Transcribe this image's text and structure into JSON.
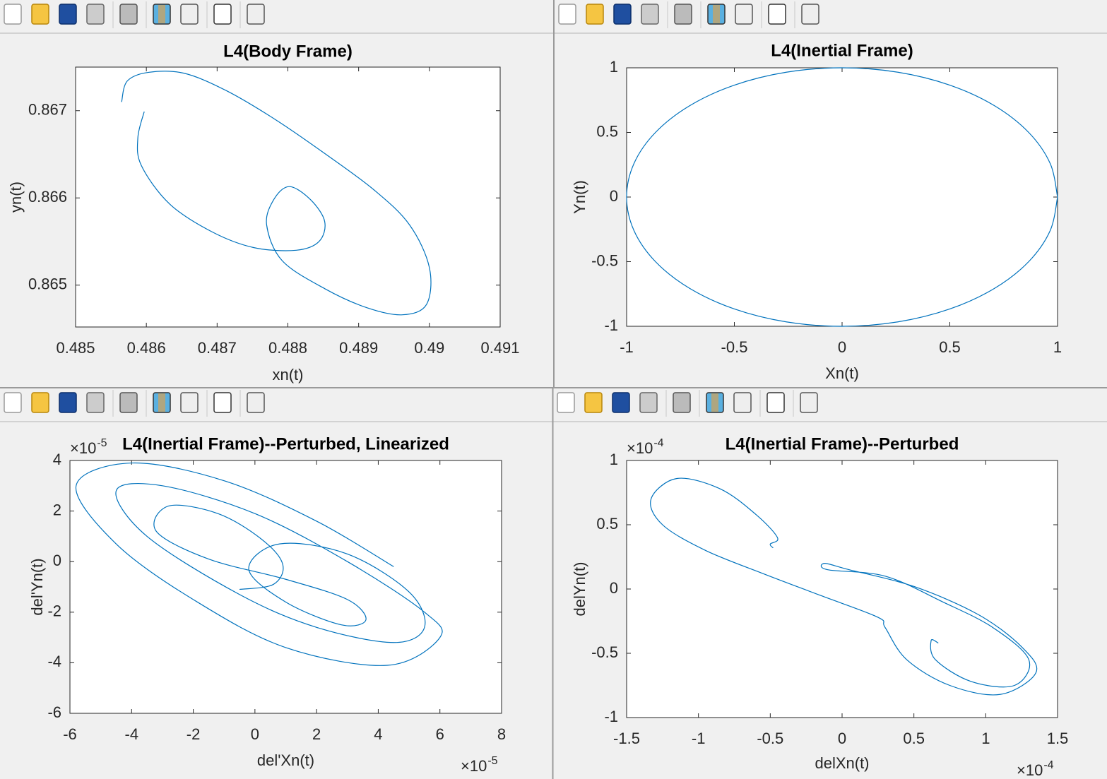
{
  "chart_data": [
    {
      "type": "line",
      "title": "L4(Body Frame)",
      "x_label": "xn(t)",
      "y_label": "yn(t)",
      "color": "#0072bd",
      "x": [
        0.48565,
        0.48573,
        0.48603,
        0.48653,
        0.48713,
        0.48782,
        0.48852,
        0.48922,
        0.48972,
        0.49,
        0.48996,
        0.48962,
        0.48912,
        0.48852,
        0.48792,
        0.4877,
        0.4878,
        0.48802,
        0.48832,
        0.48852,
        0.48844,
        0.48812,
        0.48752,
        0.48693,
        0.48633,
        0.48593,
        0.48588,
        0.48597
      ],
      "values": [
        0.8671,
        0.86734,
        0.86744,
        0.86743,
        0.86723,
        0.8669,
        0.86651,
        0.86609,
        0.86569,
        0.8652,
        0.86478,
        0.86466,
        0.86474,
        0.86496,
        0.86528,
        0.86569,
        0.86598,
        0.86613,
        0.86598,
        0.86573,
        0.8655,
        0.8654,
        0.86543,
        0.86561,
        0.86593,
        0.86637,
        0.86669,
        0.86699
      ],
      "xlim": [
        0.485,
        0.491
      ],
      "ylim": [
        0.86452,
        0.8675
      ],
      "xticks": [
        0.485,
        0.486,
        0.487,
        0.488,
        0.489,
        0.49,
        0.491
      ],
      "yticks": [
        0.865,
        0.866,
        0.867
      ]
    },
    {
      "type": "line",
      "title": "L4(Inertial Frame)",
      "x_label": "Xn(t)",
      "y_label": "Yn(t)",
      "color": "#0072bd",
      "x": [
        1,
        0.966,
        0.866,
        0.707,
        0.5,
        0.259,
        0,
        -0.259,
        -0.5,
        -0.707,
        -0.866,
        -0.966,
        -1,
        -0.966,
        -0.866,
        -0.707,
        -0.5,
        -0.259,
        0,
        0.259,
        0.5,
        0.707,
        0.866,
        0.966,
        1
      ],
      "values": [
        0,
        0.259,
        0.5,
        0.707,
        0.866,
        0.966,
        1,
        0.966,
        0.866,
        0.707,
        0.5,
        0.259,
        0,
        -0.259,
        -0.5,
        -0.707,
        -0.866,
        -0.966,
        -1,
        -0.966,
        -0.866,
        -0.707,
        -0.5,
        -0.259,
        0
      ],
      "xlim": [
        -1,
        1
      ],
      "ylim": [
        -1,
        1
      ],
      "xticks": [
        -1,
        -0.5,
        0,
        0.5,
        1
      ],
      "yticks": [
        -1,
        -0.5,
        0,
        0.5,
        1
      ]
    },
    {
      "type": "line",
      "title": "L4(Inertial Frame)--Perturbed, Linearized",
      "x_label": "del'Xn(t)",
      "y_label": "del'Yn(t)",
      "color": "#0072bd",
      "x_multiplier": {
        "base": "×10",
        "exponent": "-5"
      },
      "y_multiplier": {
        "base": "×10",
        "exponent": "-5"
      },
      "x": [
        -0.5,
        0.6,
        0.9,
        0.2,
        -1.2,
        -2.8,
        -3.2,
        -1.5,
        1,
        3,
        3.6,
        2.8,
        1,
        -0.2,
        0.8,
        3,
        5,
        5.5,
        4.5,
        2,
        -0.5,
        -3.5,
        -4.5,
        -3,
        0,
        3,
        5.5,
        6,
        4.3,
        1,
        -2,
        -4.5,
        -5.8,
        -4,
        -1,
        2,
        4.5
      ],
      "values": [
        -1.1,
        -0.9,
        -0.1,
        0.9,
        1.9,
        2.2,
        1.2,
        0.1,
        -0.7,
        -1.5,
        -2.3,
        -2.5,
        -1.6,
        -0.3,
        0.7,
        0.3,
        -1.2,
        -2.6,
        -3.2,
        -2.6,
        -1.3,
        1,
        2.8,
        3,
        1.9,
        0,
        -2,
        -3,
        -4.1,
        -3.4,
        -1.5,
        0.7,
        3,
        3.9,
        3.2,
        1.6,
        -0.2
      ],
      "xlim": [
        -6,
        8
      ],
      "ylim": [
        -6,
        4
      ],
      "xticks": [
        -6,
        -4,
        -2,
        0,
        2,
        4,
        6,
        8
      ],
      "yticks": [
        -6,
        -4,
        -2,
        0,
        2,
        4
      ]
    },
    {
      "type": "line",
      "title": "L4(Inertial Frame)--Perturbed",
      "x_label": "delXn(t)",
      "y_label": "delYn(t)",
      "color": "#0072bd",
      "x_multiplier": {
        "base": "×10",
        "exponent": "-4"
      },
      "y_multiplier": {
        "base": "×10",
        "exponent": "-4"
      },
      "x": [
        -0.48,
        -0.5,
        -0.45,
        -0.6,
        -0.85,
        -1.15,
        -1.33,
        -1.25,
        -0.95,
        -0.55,
        -0.15,
        0.25,
        0.3,
        0.45,
        0.75,
        1.1,
        1.35,
        1.25,
        0.95,
        0.5,
        0.05,
        -0.12,
        -0.1,
        0.3,
        0.7,
        1.05,
        1.3,
        1.2,
        0.9,
        0.65,
        0.62,
        0.67
      ],
      "values": [
        0.32,
        0.35,
        0.4,
        0.58,
        0.78,
        0.86,
        0.7,
        0.5,
        0.3,
        0.12,
        -0.05,
        -0.22,
        -0.3,
        -0.55,
        -0.75,
        -0.82,
        -0.65,
        -0.45,
        -0.2,
        0.02,
        0.15,
        0.2,
        0.15,
        0.1,
        -0.1,
        -0.3,
        -0.55,
        -0.75,
        -0.72,
        -0.55,
        -0.4,
        -0.42
      ],
      "xlim": [
        -1.5,
        1.5
      ],
      "ylim": [
        -1,
        1
      ],
      "xticks": [
        -1.5,
        -1,
        -0.5,
        0,
        0.5,
        1,
        1.5
      ],
      "yticks": [
        -1,
        -0.5,
        0,
        0.5,
        1
      ]
    }
  ]
}
